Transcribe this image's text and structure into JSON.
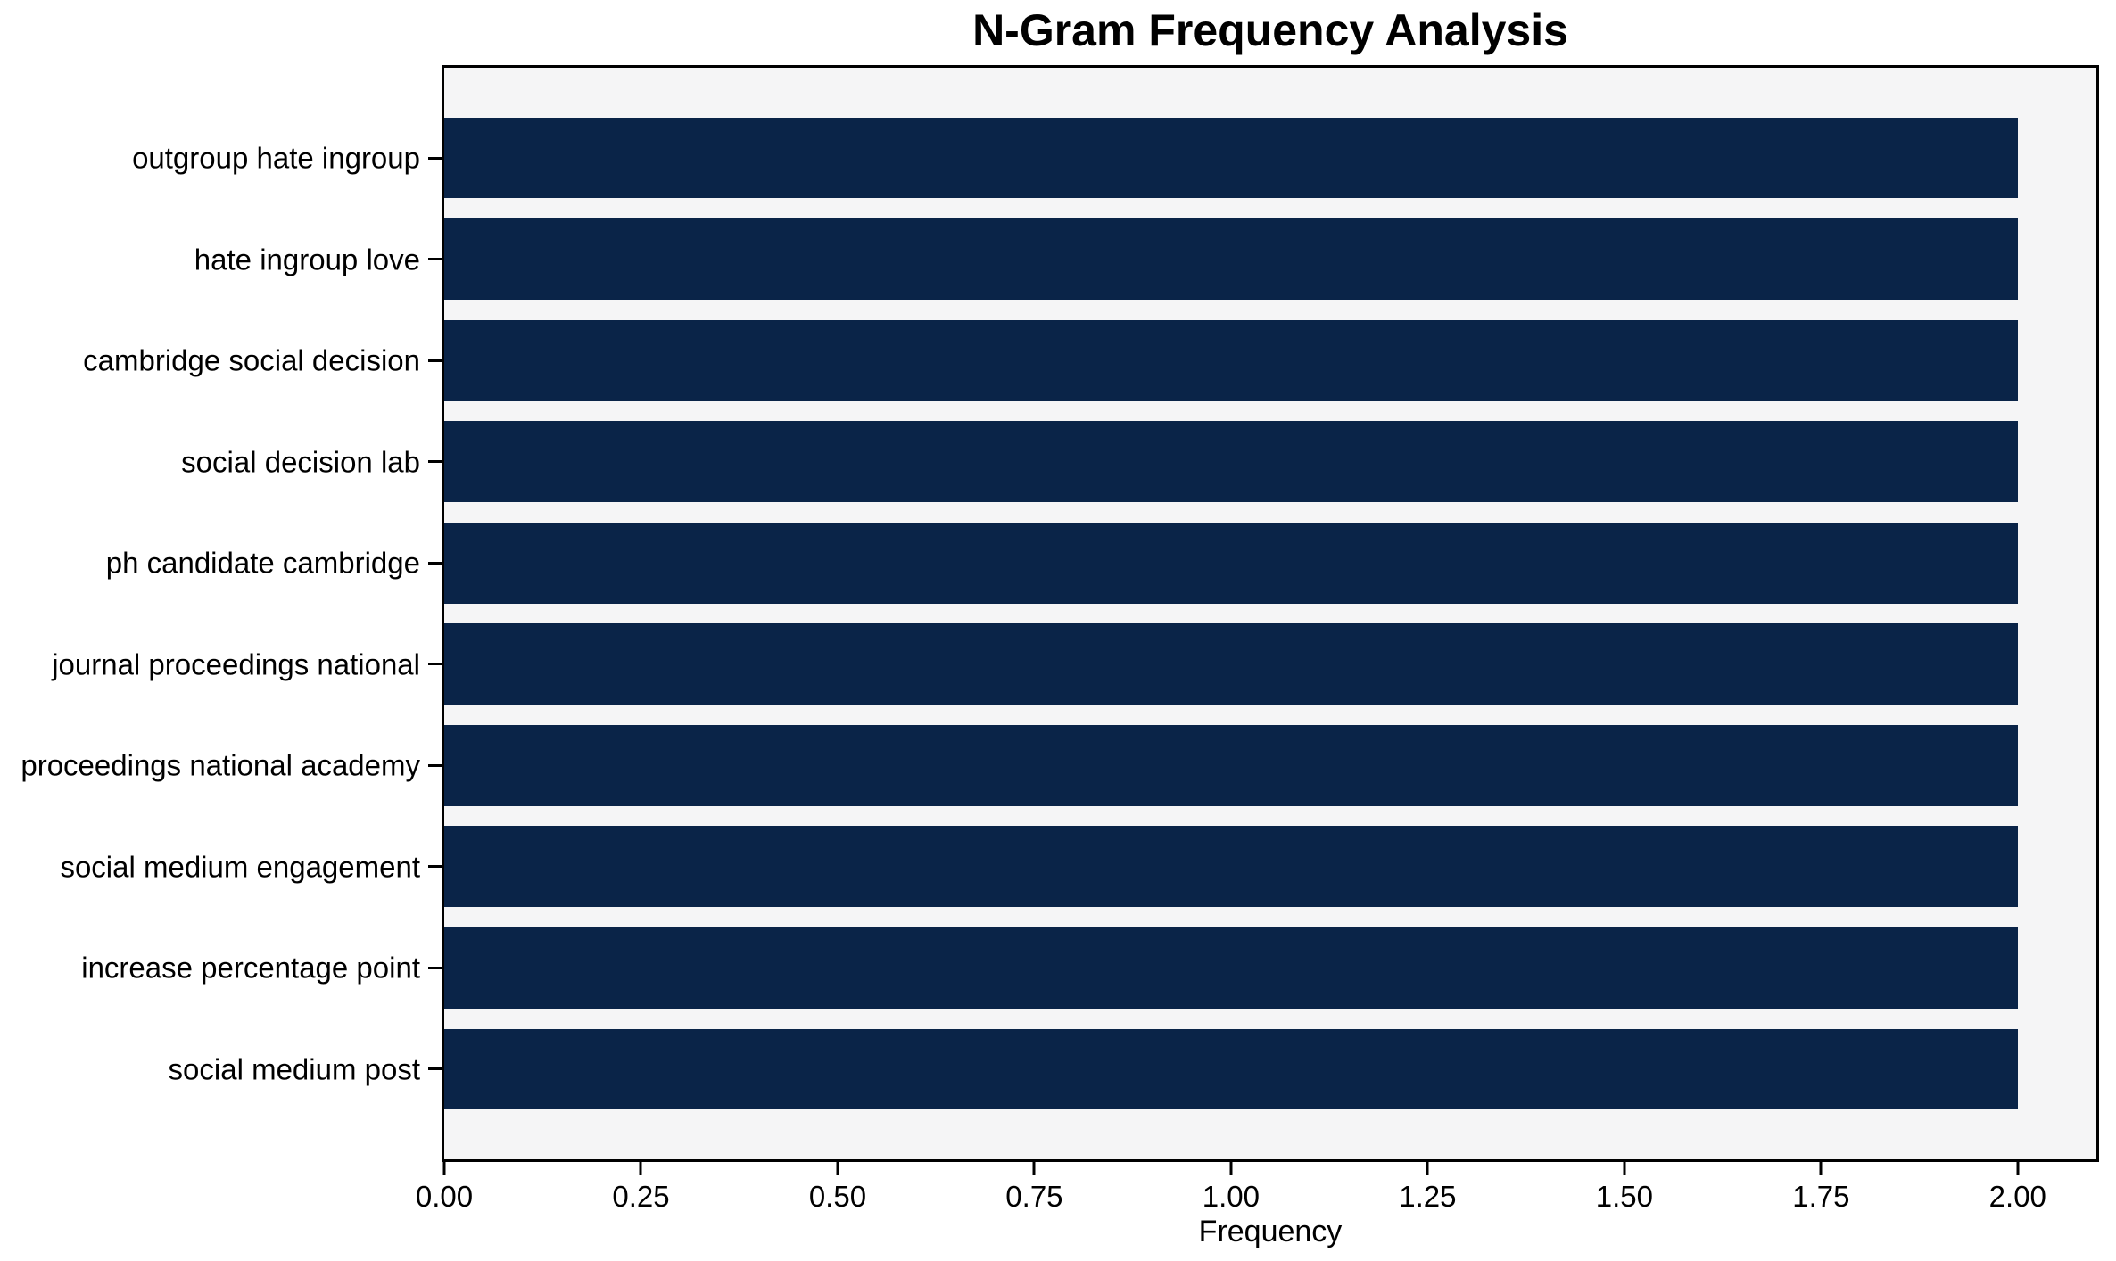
{
  "figure": {
    "background": "#ffffff",
    "text_color": "#000000"
  },
  "chart_data": {
    "type": "bar",
    "orientation": "horizontal",
    "title": "N-Gram Frequency Analysis",
    "xlabel": "Frequency",
    "ylabel": "",
    "categories": [
      "outgroup hate ingroup",
      "hate ingroup love",
      "cambridge social decision",
      "social decision lab",
      "ph candidate cambridge",
      "journal proceedings national",
      "proceedings national academy",
      "social medium engagement",
      "increase percentage point",
      "social medium post"
    ],
    "values": [
      2,
      2,
      2,
      2,
      2,
      2,
      2,
      2,
      2,
      2
    ],
    "xlim": [
      0,
      2.1
    ],
    "xticks": [
      0,
      0.25,
      0.5,
      0.75,
      1.0,
      1.25,
      1.5,
      1.75,
      2.0
    ],
    "xtick_labels": [
      "0.00",
      "0.25",
      "0.50",
      "0.75",
      "1.00",
      "1.25",
      "1.50",
      "1.75",
      "2.00"
    ],
    "grid": false,
    "legend": null,
    "bar_color": "#0a2448",
    "plot_background": "#f5f5f6",
    "spine_color": "#000000",
    "bar_fraction": 0.8,
    "category_margin": 0.49
  }
}
